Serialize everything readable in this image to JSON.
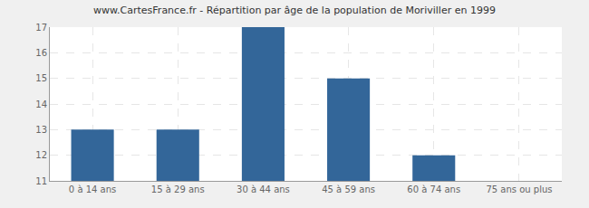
{
  "chart_data": {
    "type": "bar",
    "title": "www.CartesFrance.fr - Répartition par âge de la population de Moriviller en 1999",
    "categories": [
      "0 à 14 ans",
      "15 à 29 ans",
      "30 à 44 ans",
      "45 à 59 ans",
      "60 à 74 ans",
      "75 ans ou plus"
    ],
    "values": [
      13,
      13,
      17,
      15,
      12,
      11
    ],
    "color": "#336699",
    "ylim": [
      11,
      17
    ],
    "yticks": [
      11,
      12,
      13,
      14,
      15,
      16,
      17
    ],
    "grid": true
  }
}
